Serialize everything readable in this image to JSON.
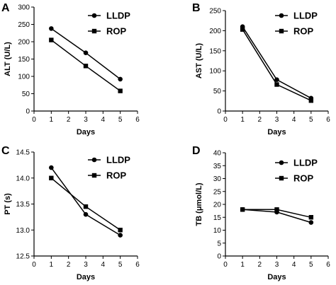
{
  "chart_data": [
    {
      "panel": "A",
      "type": "line",
      "xlabel": "Days",
      "ylabel": "ALT (U/L)",
      "xlim": [
        0,
        6
      ],
      "ylim": [
        0,
        300
      ],
      "xticks": [
        "0",
        "1",
        "2",
        "3",
        "4",
        "5",
        "6"
      ],
      "yticks": [
        "0",
        "50",
        "100",
        "150",
        "200",
        "250",
        "300"
      ],
      "x": [
        1,
        3,
        5
      ],
      "legend_position": "top-right",
      "series": [
        {
          "name": "LLDP",
          "marker": "circle",
          "values": [
            238,
            168,
            92
          ]
        },
        {
          "name": "ROP",
          "marker": "square",
          "values": [
            205,
            130,
            58
          ]
        }
      ]
    },
    {
      "panel": "B",
      "type": "line",
      "xlabel": "Days",
      "ylabel": "AST (U/L)",
      "xlim": [
        0,
        6
      ],
      "ylim": [
        0,
        250
      ],
      "xticks": [
        "0",
        "1",
        "2",
        "3",
        "4",
        "5",
        "6"
      ],
      "yticks": [
        "0",
        "50",
        "100",
        "150",
        "200",
        "250"
      ],
      "x": [
        1,
        3,
        5
      ],
      "legend_position": "top-right",
      "series": [
        {
          "name": "LLDP",
          "marker": "circle",
          "values": [
            210,
            78,
            32
          ]
        },
        {
          "name": "ROP",
          "marker": "square",
          "values": [
            203,
            66,
            26
          ]
        }
      ]
    },
    {
      "panel": "C",
      "type": "line",
      "xlabel": "Days",
      "ylabel": "PT (s)",
      "xlim": [
        0,
        6
      ],
      "ylim": [
        12.5,
        14.5
      ],
      "xticks": [
        "0",
        "1",
        "2",
        "3",
        "4",
        "5",
        "6"
      ],
      "yticks": [
        "12.5",
        "13.0",
        "13.5",
        "14.0",
        "14.5"
      ],
      "x": [
        1,
        3,
        5
      ],
      "legend_position": "top-right",
      "series": [
        {
          "name": "LLDP",
          "marker": "circle",
          "values": [
            14.2,
            13.3,
            12.9
          ]
        },
        {
          "name": "ROP",
          "marker": "square",
          "values": [
            14.0,
            13.45,
            13.0
          ]
        }
      ]
    },
    {
      "panel": "D",
      "type": "line",
      "xlabel": "Days",
      "ylabel": "TB (μmol/L)",
      "xlim": [
        0,
        6
      ],
      "ylim": [
        0,
        40
      ],
      "xticks": [
        "0",
        "1",
        "2",
        "3",
        "4",
        "5",
        "6"
      ],
      "yticks": [
        "0",
        "5",
        "10",
        "15",
        "20",
        "25",
        "30",
        "35",
        "40"
      ],
      "x": [
        1,
        3,
        5
      ],
      "legend_position": "top-right",
      "series": [
        {
          "name": "LLDP",
          "marker": "circle",
          "values": [
            18,
            17,
            13
          ]
        },
        {
          "name": "ROP",
          "marker": "square",
          "values": [
            18,
            18,
            15
          ]
        }
      ]
    }
  ]
}
